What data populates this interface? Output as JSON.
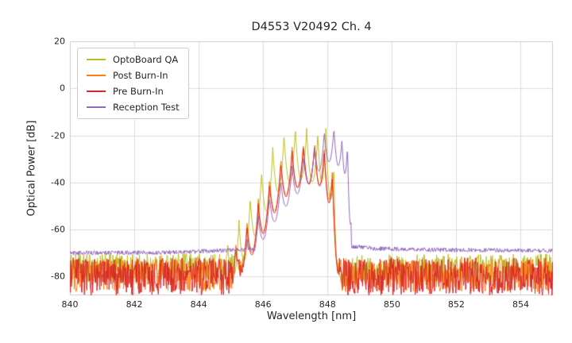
{
  "chart_data": {
    "type": "line",
    "title": "D4553 V20492 Ch. 4",
    "xlabel": "Wavelength [nm]",
    "ylabel": "Optical Power [dB]",
    "xlim": [
      840,
      855
    ],
    "ylim": [
      -88,
      20
    ],
    "xticks": [
      840,
      842,
      844,
      846,
      848,
      850,
      852,
      854
    ],
    "yticks": [
      20,
      0,
      -20,
      -40,
      -60,
      -80
    ],
    "grid": true,
    "legend_position": "upper left",
    "series": [
      {
        "name": "OptoBoard QA",
        "color": "#bcbd22",
        "noise": {
          "amp": 6,
          "floor_points": [
            [
              840,
              -76.5
            ],
            [
              844.3,
              -76
            ],
            [
              848.6,
              -76.5
            ],
            [
              855,
              -76.3
            ]
          ]
        },
        "signal": {
          "valley_drop": 22,
          "peaks": [
            [
              844.55,
              -74
            ],
            [
              844.9,
              -65
            ],
            [
              845.25,
              -56
            ],
            [
              845.6,
              -46
            ],
            [
              845.95,
              -35
            ],
            [
              846.3,
              -25
            ],
            [
              846.65,
              -19
            ],
            [
              847.0,
              -16.5
            ],
            [
              847.35,
              -17
            ],
            [
              847.7,
              -18.5
            ],
            [
              847.95,
              -17
            ],
            [
              848.2,
              -32
            ],
            [
              848.35,
              -72
            ]
          ]
        }
      },
      {
        "name": "Post Burn-In",
        "color": "#ff7f0e",
        "noise": {
          "amp": 7,
          "floor_points": [
            [
              840,
              -79.5
            ],
            [
              855,
              -79.5
            ]
          ]
        },
        "signal": {
          "valley_drop": 18,
          "peaks": [
            [
              844.8,
              -75
            ],
            [
              845.15,
              -65
            ],
            [
              845.5,
              -56
            ],
            [
              845.85,
              -47
            ],
            [
              846.2,
              -38
            ],
            [
              846.55,
              -29.5
            ],
            [
              846.9,
              -25
            ],
            [
              847.25,
              -23
            ],
            [
              847.6,
              -22.5
            ],
            [
              847.9,
              -24
            ],
            [
              848.15,
              -34
            ],
            [
              848.4,
              -74
            ]
          ]
        }
      },
      {
        "name": "Pre Burn-In",
        "color": "#d62728",
        "noise": {
          "amp": 8,
          "floor_points": [
            [
              840,
              -80
            ],
            [
              855,
              -80
            ]
          ]
        },
        "signal": {
          "valley_drop": 17,
          "peaks": [
            [
              844.8,
              -76
            ],
            [
              845.15,
              -67
            ],
            [
              845.5,
              -58
            ],
            [
              845.85,
              -49
            ],
            [
              846.2,
              -40
            ],
            [
              846.55,
              -31.5
            ],
            [
              846.9,
              -26.5
            ],
            [
              847.25,
              -24
            ],
            [
              847.6,
              -23.5
            ],
            [
              847.9,
              -25.5
            ],
            [
              848.15,
              -37
            ],
            [
              848.4,
              -76
            ]
          ]
        }
      },
      {
        "name": "Reception Test",
        "color": "#9467bd",
        "noise": {
          "amp": 0.9,
          "floor_points": [
            [
              840,
              -70
            ],
            [
              843.5,
              -69.7
            ],
            [
              844.6,
              -68.9
            ],
            [
              845.3,
              -68.6
            ],
            [
              848.8,
              -67.3
            ],
            [
              849.5,
              -68.1
            ],
            [
              851,
              -68.6
            ],
            [
              855,
              -69.0
            ]
          ]
        },
        "signal": {
          "valley_drop": 14,
          "peaks": [
            [
              845.5,
              -63
            ],
            [
              845.85,
              -54
            ],
            [
              846.2,
              -46
            ],
            [
              846.55,
              -39
            ],
            [
              846.9,
              -33
            ],
            [
              847.25,
              -28.5
            ],
            [
              847.6,
              -24
            ],
            [
              847.9,
              -18
            ],
            [
              848.2,
              -16.5
            ],
            [
              848.45,
              -21
            ],
            [
              848.62,
              -23.5
            ],
            [
              848.74,
              -55
            ]
          ]
        }
      }
    ]
  }
}
